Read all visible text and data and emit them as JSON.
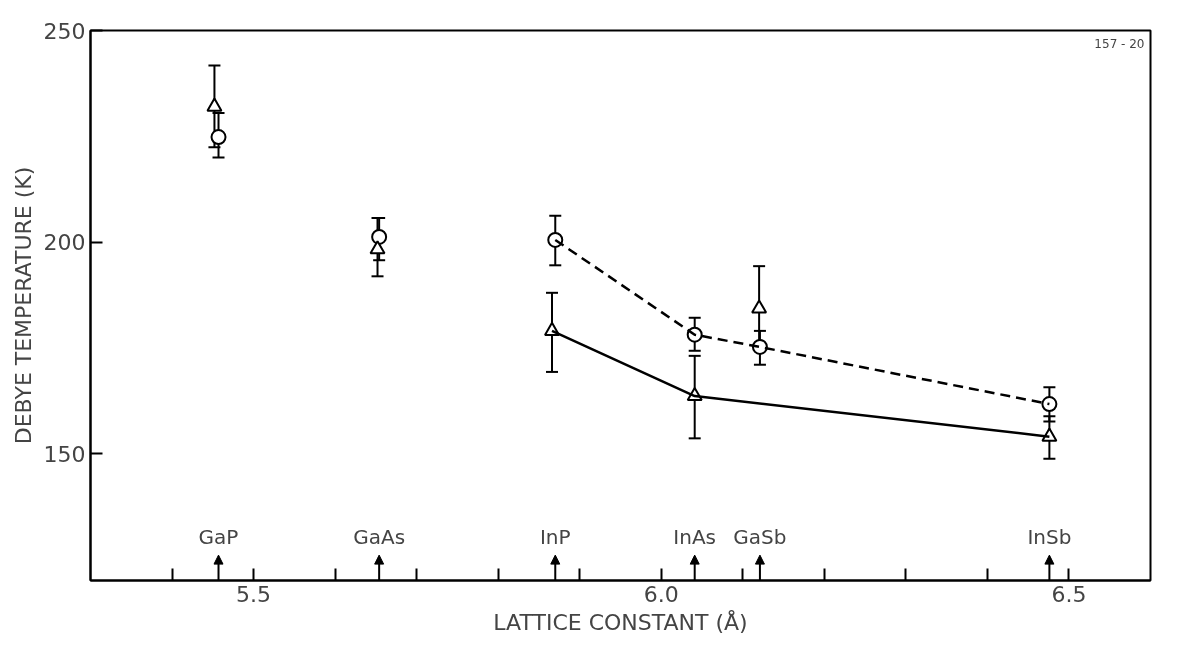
{
  "chart_data": {
    "type": "scatter",
    "xlabel": "LATTICE CONSTANT (Å)",
    "ylabel": "DEBYE TEMPERATURE (K)",
    "xlim": [
      5.3,
      6.6
    ],
    "ylim": [
      120,
      250
    ],
    "xticks": [
      {
        "value": 5.4,
        "label": null
      },
      {
        "value": 5.5,
        "label": "5.5"
      },
      {
        "value": 5.6,
        "label": null
      },
      {
        "value": 5.7,
        "label": null
      },
      {
        "value": 5.8,
        "label": null
      },
      {
        "value": 5.9,
        "label": null
      },
      {
        "value": 6.0,
        "label": "6.0"
      },
      {
        "value": 6.1,
        "label": null
      },
      {
        "value": 6.2,
        "label": null
      },
      {
        "value": 6.3,
        "label": null
      },
      {
        "value": 6.4,
        "label": null
      },
      {
        "value": 6.5,
        "label": "6.5"
      }
    ],
    "yticks": [
      150,
      200,
      250
    ],
    "grid": false,
    "series": [
      {
        "marker": "circle",
        "color": "#000000",
        "x": [
          5.457,
          5.654,
          5.87,
          6.041,
          6.121,
          6.476
        ],
        "values": [
          224.8,
          201.2,
          200.5,
          178.1,
          175.2,
          161.7
        ],
        "errors": [
          [
            220,
            230.5
          ],
          [
            195.7,
            205.7
          ],
          [
            194.5,
            206.2
          ],
          [
            174.3,
            182.1
          ],
          [
            171,
            179
          ],
          [
            157.6,
            165.7
          ]
        ]
      },
      {
        "marker": "triangle",
        "color": "#000000",
        "x": [
          5.452,
          5.652,
          5.866,
          6.041,
          6.12,
          6.476
        ],
        "values": [
          232,
          198.3,
          179,
          163.6,
          184.3,
          154
        ],
        "errors": [
          [
            222.4,
            241.7
          ],
          [
            191.9,
            205.7
          ],
          [
            169.3,
            188
          ],
          [
            153.6,
            173.1
          ],
          [
            175.2,
            194.3
          ],
          [
            148.8,
            158.8
          ]
        ]
      },
      {
        "type": "line",
        "marker": "none",
        "line_style": "dashed",
        "color": "#000000",
        "x": [
          5.87,
          6.041,
          6.121,
          6.476
        ],
        "values": [
          200.5,
          178.1,
          175.2,
          161.7
        ]
      },
      {
        "type": "line",
        "marker": "none",
        "line_style": "solid",
        "color": "#000000",
        "x": [
          5.866,
          6.041,
          6.476
        ],
        "values": [
          179,
          163.6,
          154
        ]
      }
    ],
    "annotations": [
      "GaP",
      "GaAs",
      "InP",
      "InAs",
      "GaSb",
      "InSb",
      "157 - 20"
    ]
  }
}
